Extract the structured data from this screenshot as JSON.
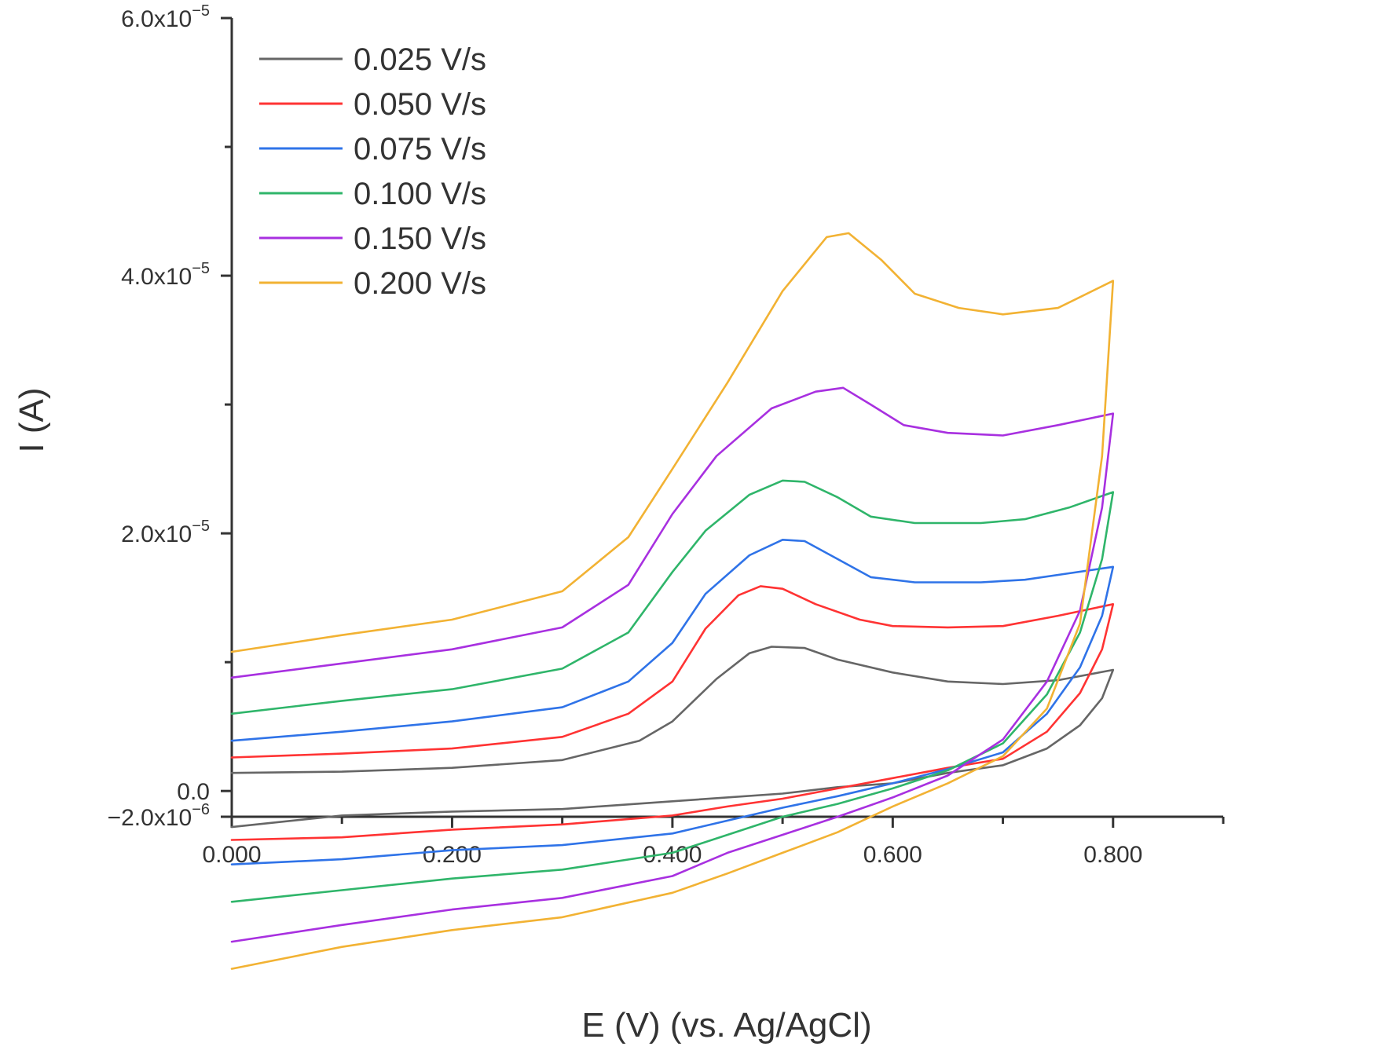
{
  "chart_data": {
    "type": "line",
    "title": "",
    "xlabel": "E (V) (vs. Ag/AgCl)",
    "ylabel": "I (A)",
    "xlim": [
      0.0,
      0.9
    ],
    "ylim": [
      -2e-06,
      6e-05
    ],
    "x_ticks": [
      {
        "value": 0.0,
        "label": "0.000"
      },
      {
        "value": 0.2,
        "label": "0.200"
      },
      {
        "value": 0.4,
        "label": "0.400"
      },
      {
        "value": 0.6,
        "label": "0.600"
      },
      {
        "value": 0.8,
        "label": "0.800"
      }
    ],
    "x_minor_ticks": [
      0.1,
      0.3,
      0.5,
      0.7,
      0.9
    ],
    "y_ticks": [
      {
        "value": -2e-06,
        "base": "−2.0x10",
        "exp": "−6"
      },
      {
        "value": 0.0,
        "base": "0.0",
        "exp": ""
      },
      {
        "value": 2e-05,
        "base": "2.0x10",
        "exp": "−5"
      },
      {
        "value": 4e-05,
        "base": "4.0x10",
        "exp": "−5"
      },
      {
        "value": 6e-05,
        "base": "6.0x10",
        "exp": "−5"
      }
    ],
    "y_minor_ticks": [
      1e-05,
      3e-05,
      5e-05
    ],
    "grid": false,
    "legend_position": "top-left",
    "series": [
      {
        "name": "0.025 V/s",
        "color": "#666666",
        "forward": [
          [
            0.0,
            1.4e-06
          ],
          [
            0.1,
            1.5e-06
          ],
          [
            0.2,
            1.8e-06
          ],
          [
            0.3,
            2.4e-06
          ],
          [
            0.37,
            3.9e-06
          ],
          [
            0.4,
            5.4e-06
          ],
          [
            0.44,
            8.7e-06
          ],
          [
            0.47,
            1.07e-05
          ],
          [
            0.49,
            1.12e-05
          ],
          [
            0.52,
            1.11e-05
          ],
          [
            0.55,
            1.02e-05
          ],
          [
            0.6,
            9.2e-06
          ],
          [
            0.65,
            8.5e-06
          ],
          [
            0.7,
            8.3e-06
          ],
          [
            0.75,
            8.6e-06
          ],
          [
            0.8,
            9.4e-06
          ]
        ],
        "reverse": [
          [
            0.8,
            9.4e-06
          ],
          [
            0.79,
            7.2e-06
          ],
          [
            0.77,
            5.1e-06
          ],
          [
            0.74,
            3.3e-06
          ],
          [
            0.7,
            2e-06
          ],
          [
            0.65,
            1.4e-06
          ],
          [
            0.6,
            6e-07
          ],
          [
            0.55,
            3e-07
          ],
          [
            0.5,
            -2e-07
          ],
          [
            0.4,
            -8e-07
          ],
          [
            0.3,
            -1.4e-06
          ],
          [
            0.2,
            -1.6e-06
          ],
          [
            0.1,
            -1.9e-06
          ],
          [
            0.0,
            -2.8e-06
          ]
        ]
      },
      {
        "name": "0.050 V/s",
        "color": "#ff3333",
        "forward": [
          [
            0.0,
            2.6e-06
          ],
          [
            0.1,
            2.9e-06
          ],
          [
            0.2,
            3.3e-06
          ],
          [
            0.3,
            4.2e-06
          ],
          [
            0.36,
            6e-06
          ],
          [
            0.4,
            8.5e-06
          ],
          [
            0.43,
            1.26e-05
          ],
          [
            0.46,
            1.52e-05
          ],
          [
            0.48,
            1.59e-05
          ],
          [
            0.5,
            1.57e-05
          ],
          [
            0.53,
            1.45e-05
          ],
          [
            0.57,
            1.33e-05
          ],
          [
            0.6,
            1.28e-05
          ],
          [
            0.65,
            1.27e-05
          ],
          [
            0.7,
            1.28e-05
          ],
          [
            0.75,
            1.36e-05
          ],
          [
            0.8,
            1.45e-05
          ]
        ],
        "reverse": [
          [
            0.8,
            1.45e-05
          ],
          [
            0.79,
            1.1e-05
          ],
          [
            0.77,
            7.6e-06
          ],
          [
            0.74,
            4.6e-06
          ],
          [
            0.7,
            2.5e-06
          ],
          [
            0.65,
            1.8e-06
          ],
          [
            0.6,
            1e-06
          ],
          [
            0.55,
            2e-07
          ],
          [
            0.5,
            -6e-07
          ],
          [
            0.45,
            -1.2e-06
          ],
          [
            0.4,
            -1.9e-06
          ],
          [
            0.3,
            -2.6e-06
          ],
          [
            0.2,
            -3e-06
          ],
          [
            0.1,
            -3.6e-06
          ],
          [
            0.0,
            -3.8e-06
          ]
        ]
      },
      {
        "name": "0.075 V/s",
        "color": "#2f73e8",
        "forward": [
          [
            0.0,
            3.9e-06
          ],
          [
            0.1,
            4.6e-06
          ],
          [
            0.2,
            5.4e-06
          ],
          [
            0.3,
            6.5e-06
          ],
          [
            0.36,
            8.5e-06
          ],
          [
            0.4,
            1.15e-05
          ],
          [
            0.43,
            1.53e-05
          ],
          [
            0.47,
            1.83e-05
          ],
          [
            0.5,
            1.95e-05
          ],
          [
            0.52,
            1.94e-05
          ],
          [
            0.55,
            1.8e-05
          ],
          [
            0.58,
            1.66e-05
          ],
          [
            0.62,
            1.62e-05
          ],
          [
            0.68,
            1.62e-05
          ],
          [
            0.72,
            1.64e-05
          ],
          [
            0.76,
            1.69e-05
          ],
          [
            0.8,
            1.74e-05
          ]
        ],
        "reverse": [
          [
            0.8,
            1.74e-05
          ],
          [
            0.79,
            1.36e-05
          ],
          [
            0.77,
            9.6e-06
          ],
          [
            0.74,
            6e-06
          ],
          [
            0.7,
            3e-06
          ],
          [
            0.65,
            1.7e-06
          ],
          [
            0.6,
            6e-07
          ],
          [
            0.55,
            -4e-07
          ],
          [
            0.5,
            -1.3e-06
          ],
          [
            0.45,
            -2.3e-06
          ],
          [
            0.4,
            -3.3e-06
          ],
          [
            0.3,
            -4.2e-06
          ],
          [
            0.2,
            -4.6e-06
          ],
          [
            0.1,
            -5.3e-06
          ],
          [
            0.0,
            -5.7e-06
          ]
        ]
      },
      {
        "name": "0.100 V/s",
        "color": "#2fb56a",
        "forward": [
          [
            0.0,
            6e-06
          ],
          [
            0.1,
            7e-06
          ],
          [
            0.2,
            7.9e-06
          ],
          [
            0.3,
            9.5e-06
          ],
          [
            0.36,
            1.23e-05
          ],
          [
            0.4,
            1.7e-05
          ],
          [
            0.43,
            2.02e-05
          ],
          [
            0.47,
            2.3e-05
          ],
          [
            0.5,
            2.41e-05
          ],
          [
            0.52,
            2.4e-05
          ],
          [
            0.55,
            2.28e-05
          ],
          [
            0.58,
            2.13e-05
          ],
          [
            0.62,
            2.08e-05
          ],
          [
            0.68,
            2.08e-05
          ],
          [
            0.72,
            2.11e-05
          ],
          [
            0.76,
            2.2e-05
          ],
          [
            0.8,
            2.32e-05
          ]
        ],
        "reverse": [
          [
            0.8,
            2.32e-05
          ],
          [
            0.79,
            1.8e-05
          ],
          [
            0.77,
            1.23e-05
          ],
          [
            0.74,
            7.5e-06
          ],
          [
            0.7,
            3.7e-06
          ],
          [
            0.65,
            1.6e-06
          ],
          [
            0.6,
            2e-07
          ],
          [
            0.55,
            -1e-06
          ],
          [
            0.5,
            -2e-06
          ],
          [
            0.45,
            -3.4e-06
          ],
          [
            0.4,
            -4.8e-06
          ],
          [
            0.3,
            -6.1e-06
          ],
          [
            0.2,
            -6.8e-06
          ],
          [
            0.1,
            -7.7e-06
          ],
          [
            0.0,
            -8.6e-06
          ]
        ]
      },
      {
        "name": "0.150 V/s",
        "color": "#a830e0",
        "forward": [
          [
            0.0,
            8.8e-06
          ],
          [
            0.1,
            9.9e-06
          ],
          [
            0.2,
            1.1e-05
          ],
          [
            0.3,
            1.27e-05
          ],
          [
            0.36,
            1.6e-05
          ],
          [
            0.4,
            2.15e-05
          ],
          [
            0.44,
            2.6e-05
          ],
          [
            0.49,
            2.97e-05
          ],
          [
            0.53,
            3.1e-05
          ],
          [
            0.555,
            3.13e-05
          ],
          [
            0.58,
            3e-05
          ],
          [
            0.61,
            2.84e-05
          ],
          [
            0.65,
            2.78e-05
          ],
          [
            0.7,
            2.76e-05
          ],
          [
            0.75,
            2.84e-05
          ],
          [
            0.8,
            2.93e-05
          ]
        ],
        "reverse": [
          [
            0.8,
            2.93e-05
          ],
          [
            0.79,
            2.2e-05
          ],
          [
            0.77,
            1.4e-05
          ],
          [
            0.74,
            8.5e-06
          ],
          [
            0.7,
            4e-06
          ],
          [
            0.65,
            1.2e-06
          ],
          [
            0.6,
            -5e-07
          ],
          [
            0.55,
            -2e-06
          ],
          [
            0.5,
            -3.4e-06
          ],
          [
            0.45,
            -4.8e-06
          ],
          [
            0.4,
            -6.6e-06
          ],
          [
            0.3,
            -8.3e-06
          ],
          [
            0.2,
            -9.2e-06
          ],
          [
            0.1,
            -1.04e-05
          ],
          [
            0.0,
            -1.17e-05
          ]
        ]
      },
      {
        "name": "0.200 V/s",
        "color": "#f2b233",
        "forward": [
          [
            0.0,
            1.08e-05
          ],
          [
            0.1,
            1.21e-05
          ],
          [
            0.2,
            1.33e-05
          ],
          [
            0.3,
            1.55e-05
          ],
          [
            0.36,
            1.97e-05
          ],
          [
            0.4,
            2.5e-05
          ],
          [
            0.45,
            3.17e-05
          ],
          [
            0.5,
            3.88e-05
          ],
          [
            0.54,
            4.3e-05
          ],
          [
            0.56,
            4.33e-05
          ],
          [
            0.59,
            4.12e-05
          ],
          [
            0.62,
            3.86e-05
          ],
          [
            0.66,
            3.75e-05
          ],
          [
            0.7,
            3.7e-05
          ],
          [
            0.75,
            3.75e-05
          ],
          [
            0.8,
            3.96e-05
          ]
        ],
        "reverse": [
          [
            0.8,
            3.96e-05
          ],
          [
            0.79,
            2.6e-05
          ],
          [
            0.77,
            1.3e-05
          ],
          [
            0.74,
            6.4e-06
          ],
          [
            0.7,
            2.7e-06
          ],
          [
            0.65,
            6e-07
          ],
          [
            0.6,
            -1.2e-06
          ],
          [
            0.55,
            -3.2e-06
          ],
          [
            0.5,
            -4.8e-06
          ],
          [
            0.45,
            -6.4e-06
          ],
          [
            0.4,
            -7.9e-06
          ],
          [
            0.3,
            -9.8e-06
          ],
          [
            0.2,
            -1.08e-05
          ],
          [
            0.1,
            -1.21e-05
          ],
          [
            0.0,
            -1.38e-05
          ]
        ]
      }
    ]
  }
}
